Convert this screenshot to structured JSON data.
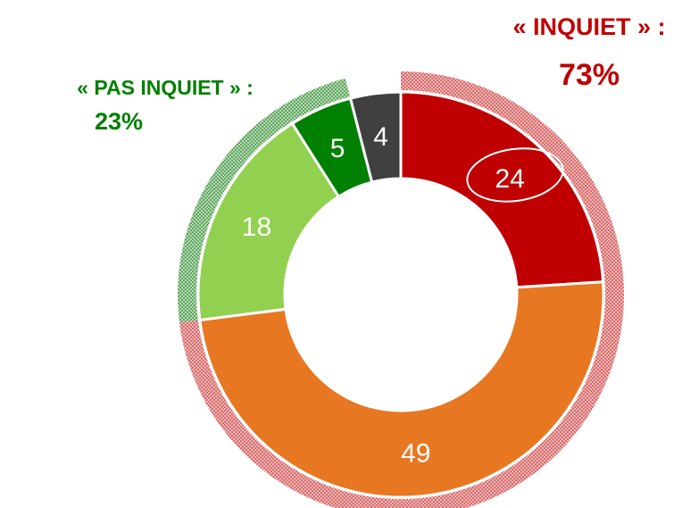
{
  "chart_data": {
    "type": "donut",
    "categories": [
      null,
      null,
      null,
      null,
      null
    ],
    "series": [
      {
        "values": [
          24,
          49,
          18,
          5,
          4
        ],
        "colors": [
          "#c00000",
          "#e87722",
          "#92d050",
          "#008000",
          "#404040"
        ]
      }
    ],
    "outer_ring": {
      "names": [
        "« INQUIET » :",
        "« PAS INQUIET » :"
      ],
      "values": [
        73,
        23
      ],
      "value_labels": [
        "73%",
        "23%"
      ],
      "colors": [
        "#c00000",
        "#008000"
      ]
    }
  }
}
